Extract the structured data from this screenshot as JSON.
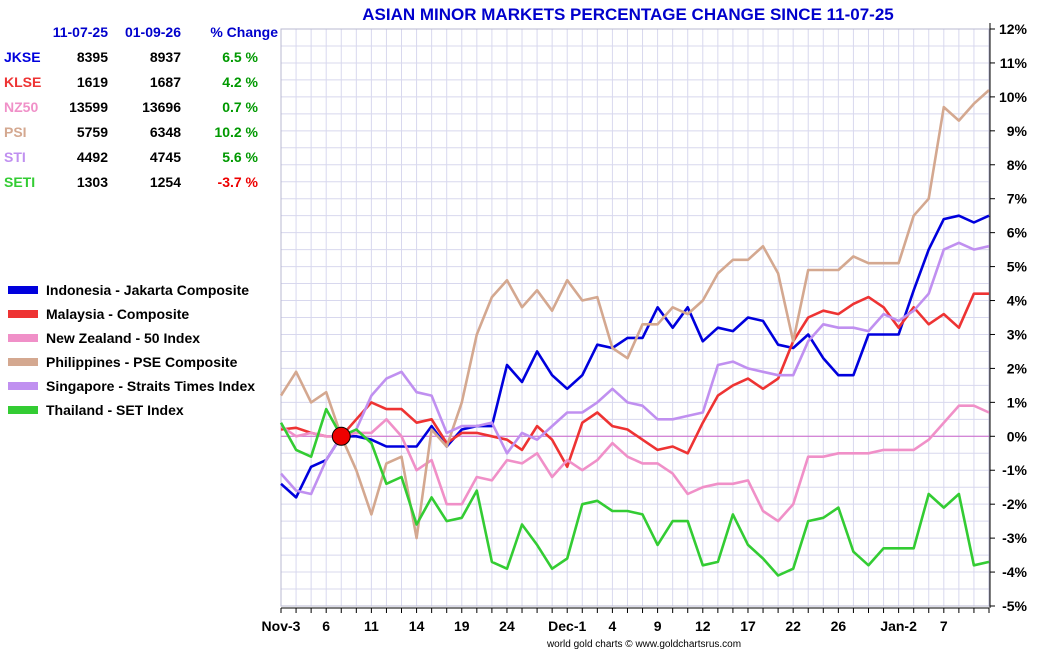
{
  "header": {
    "start_date": "11-07-25",
    "end_date": "01-09-26",
    "change_label": "% Change"
  },
  "table": [
    {
      "symbol": "JKSE",
      "start": "8395",
      "end": "8937",
      "change": "6.5 %",
      "color": "#0000dd",
      "change_color": "#009900"
    },
    {
      "symbol": "KLSE",
      "start": "1619",
      "end": "1687",
      "change": "4.2 %",
      "color": "#ee3333",
      "change_color": "#009900"
    },
    {
      "symbol": "NZ50",
      "start": "13599",
      "end": "13696",
      "change": "0.7 %",
      "color": "#f090c8",
      "change_color": "#009900"
    },
    {
      "symbol": "PSI",
      "start": "5759",
      "end": "6348",
      "change": "10.2 %",
      "color": "#d4a890",
      "change_color": "#009900"
    },
    {
      "symbol": "STI",
      "start": "4492",
      "end": "4745",
      "change": "5.6 %",
      "color": "#c090f0",
      "change_color": "#009900"
    },
    {
      "symbol": "SETI",
      "start": "1303",
      "end": "1254",
      "change": "-3.7 %",
      "color": "#33cc33",
      "change_color": "#ee0000"
    }
  ],
  "chart_data": {
    "type": "line",
    "title": "ASIAN MINOR MARKETS PERCENTAGE CHANGE SINCE 11-07-25",
    "title_color": "#0000cc",
    "credit": "world gold charts © www.goldchartsrus.com",
    "xlabel": "",
    "ylabel": "",
    "ylim": [
      -5,
      12
    ],
    "y_ticks": [
      "12%",
      "11%",
      "10%",
      "9%",
      "8%",
      "7%",
      "6%",
      "5%",
      "4%",
      "3%",
      "2%",
      "1%",
      "0%",
      "-1%",
      "-2%",
      "-3%",
      "-4%",
      "-5%"
    ],
    "x_tick_labels": [
      {
        "i": 0,
        "label": "Nov-3"
      },
      {
        "i": 3,
        "label": "6"
      },
      {
        "i": 6,
        "label": "11"
      },
      {
        "i": 9,
        "label": "14"
      },
      {
        "i": 12,
        "label": "19"
      },
      {
        "i": 15,
        "label": "24"
      },
      {
        "i": 19,
        "label": "Dec-1"
      },
      {
        "i": 22,
        "label": "4"
      },
      {
        "i": 25,
        "label": "9"
      },
      {
        "i": 28,
        "label": "12"
      },
      {
        "i": 31,
        "label": "17"
      },
      {
        "i": 34,
        "label": "22"
      },
      {
        "i": 37,
        "label": "26"
      },
      {
        "i": 41,
        "label": "Jan-2"
      },
      {
        "i": 44,
        "label": "7"
      }
    ],
    "n_points": 48,
    "zero_line_color": "#cc66cc",
    "start_marker_index": 4,
    "legend_position": "left",
    "series": [
      {
        "name": "Indonesia - Jakarta Composite",
        "color": "#0000dd",
        "values": [
          -1.4,
          -1.8,
          -0.9,
          -0.7,
          0.0,
          0.0,
          -0.1,
          -0.3,
          -0.3,
          -0.3,
          0.3,
          -0.3,
          0.2,
          0.3,
          0.3,
          2.1,
          1.6,
          2.5,
          1.8,
          1.4,
          1.8,
          2.7,
          2.6,
          2.9,
          2.9,
          3.8,
          3.2,
          3.8,
          2.8,
          3.2,
          3.1,
          3.5,
          3.4,
          2.7,
          2.6,
          3.0,
          2.3,
          1.8,
          1.8,
          3.0,
          3.0,
          3.0,
          4.3,
          5.5,
          6.4,
          6.5,
          6.3,
          6.5
        ]
      },
      {
        "name": "Malaysia - Composite",
        "color": "#ee3333",
        "values": [
          0.2,
          0.25,
          0.1,
          0.0,
          0.0,
          0.5,
          1.0,
          0.8,
          0.8,
          0.4,
          0.5,
          -0.2,
          0.1,
          0.1,
          0.0,
          -0.1,
          -0.4,
          0.3,
          -0.1,
          -0.9,
          0.4,
          0.7,
          0.3,
          0.2,
          -0.1,
          -0.4,
          -0.3,
          -0.5,
          0.4,
          1.2,
          1.5,
          1.7,
          1.4,
          1.7,
          2.8,
          3.5,
          3.7,
          3.6,
          3.9,
          4.1,
          3.8,
          3.2,
          3.8,
          3.3,
          3.6,
          3.2,
          4.2,
          4.2
        ]
      },
      {
        "name": "New Zealand - 50 Index",
        "color": "#f090c8",
        "values": [
          0.3,
          0.0,
          0.1,
          0.0,
          0.0,
          0.1,
          0.1,
          0.5,
          0.0,
          -1.0,
          -0.7,
          -2.0,
          -2.0,
          -1.2,
          -1.3,
          -0.7,
          -0.8,
          -0.5,
          -1.2,
          -0.7,
          -1.0,
          -0.7,
          -0.2,
          -0.6,
          -0.8,
          -0.8,
          -1.1,
          -1.7,
          -1.5,
          -1.4,
          -1.4,
          -1.3,
          -2.2,
          -2.5,
          -2.0,
          -0.6,
          -0.6,
          -0.5,
          -0.5,
          -0.5,
          -0.4,
          -0.4,
          -0.4,
          -0.1,
          0.4,
          0.9,
          0.9,
          0.7
        ]
      },
      {
        "name": "Philippines - PSE Composite",
        "color": "#d4a890",
        "values": [
          1.2,
          1.9,
          1.0,
          1.3,
          0.0,
          -1.0,
          -2.3,
          -0.8,
          -0.6,
          -3.0,
          0.2,
          -0.3,
          1.0,
          3.0,
          4.1,
          4.6,
          3.8,
          4.3,
          3.7,
          4.6,
          4.0,
          4.1,
          2.6,
          2.3,
          3.3,
          3.3,
          3.8,
          3.6,
          4.0,
          4.8,
          5.2,
          5.2,
          5.6,
          4.8,
          2.8,
          4.9,
          4.9,
          4.9,
          5.3,
          5.1,
          5.1,
          5.1,
          6.5,
          7.0,
          9.7,
          9.3,
          9.8,
          10.2
        ]
      },
      {
        "name": "Singapore - Straits Times Index",
        "color": "#c090f0",
        "values": [
          -1.1,
          -1.6,
          -1.7,
          -0.7,
          0.0,
          0.2,
          1.2,
          1.7,
          1.9,
          1.3,
          1.2,
          0.1,
          0.3,
          0.3,
          0.4,
          -0.5,
          0.1,
          -0.1,
          0.3,
          0.7,
          0.7,
          1.0,
          1.4,
          1.0,
          0.9,
          0.5,
          0.5,
          0.6,
          0.7,
          2.1,
          2.2,
          2.0,
          1.9,
          1.8,
          1.8,
          2.8,
          3.3,
          3.2,
          3.2,
          3.1,
          3.6,
          3.4,
          3.7,
          4.2,
          5.5,
          5.7,
          5.5,
          5.6
        ]
      },
      {
        "name": "Thailand - SET Index",
        "color": "#33cc33",
        "values": [
          0.4,
          -0.4,
          -0.6,
          0.8,
          0.0,
          0.2,
          -0.2,
          -1.4,
          -1.2,
          -2.6,
          -1.8,
          -2.5,
          -2.4,
          -1.6,
          -3.7,
          -3.9,
          -2.6,
          -3.2,
          -3.9,
          -3.6,
          -2.0,
          -1.9,
          -2.2,
          -2.2,
          -2.3,
          -3.2,
          -2.5,
          -2.5,
          -3.8,
          -3.7,
          -2.3,
          -3.2,
          -3.6,
          -4.1,
          -3.9,
          -2.5,
          -2.4,
          -2.1,
          -3.4,
          -3.8,
          -3.3,
          -3.3,
          -3.3,
          -1.7,
          -2.1,
          -1.7,
          -3.8,
          -3.7
        ]
      }
    ]
  }
}
